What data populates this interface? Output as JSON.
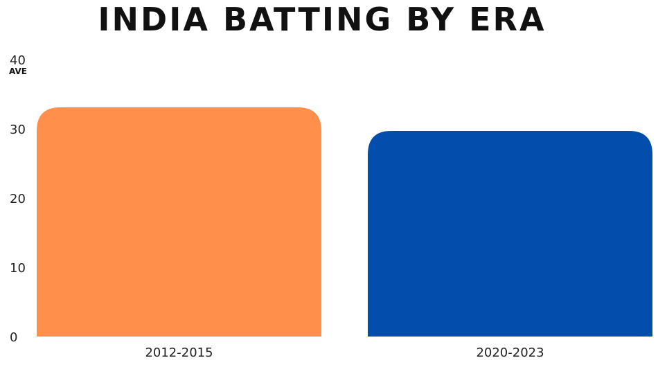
{
  "chart_data": {
    "type": "bar",
    "title": "INDIA BATTING BY ERA",
    "xlabel": "",
    "ylabel": "AVE",
    "ylim": [
      0,
      40
    ],
    "yticks": [
      0,
      10,
      20,
      30,
      40
    ],
    "categories": [
      "2012-2015",
      "2020-2023"
    ],
    "values": [
      33.1,
      29.7
    ],
    "colors": [
      "#ff8f4b",
      "#034ead"
    ],
    "grid": false,
    "legend": "none"
  }
}
